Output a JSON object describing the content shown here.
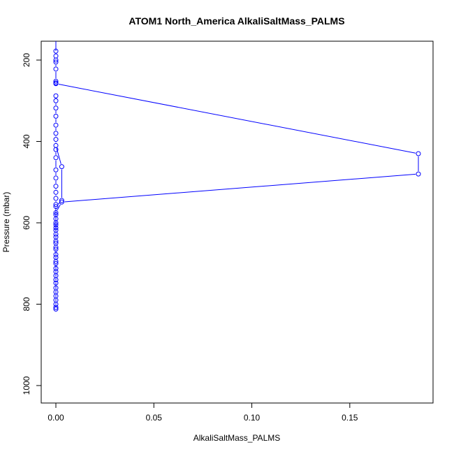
{
  "chart_data": {
    "type": "line",
    "title": "ATOM1 North_America AlkaliSaltMass_PALMS",
    "xlabel": "AlkaliSaltMass_PALMS",
    "ylabel": "Pressure (mbar)",
    "xlim": [
      0,
      0.185
    ],
    "ylim": [
      1040,
      160
    ],
    "y_reversed": true,
    "x_ticks": [
      0.0,
      0.05,
      0.1,
      0.15
    ],
    "x_tick_labels": [
      "0.00",
      "0.05",
      "0.10",
      "0.15"
    ],
    "y_ticks": [
      200,
      400,
      600,
      800,
      1000
    ],
    "y_tick_labels": [
      "200",
      "400",
      "600",
      "800",
      "1000"
    ],
    "grid": false,
    "legend": "none",
    "series": [
      {
        "color": "#0000ff",
        "marker": "open-circle",
        "points": [
          [
            0,
            178
          ],
          [
            0,
            190
          ],
          [
            0,
            200
          ],
          [
            0,
            205
          ],
          [
            0,
            222
          ],
          [
            0,
            252
          ],
          [
            0,
            256
          ],
          [
            0,
            258
          ],
          [
            0.185,
            430
          ],
          [
            0.185,
            480
          ],
          [
            0.003,
            549
          ],
          [
            0,
            575
          ],
          [
            0,
            600
          ],
          [
            0,
            618
          ],
          [
            0,
            635
          ],
          [
            0,
            650
          ],
          [
            0,
            665
          ],
          [
            0,
            685
          ],
          [
            0,
            700
          ],
          [
            0,
            720
          ],
          [
            0,
            740
          ],
          [
            0,
            760
          ],
          [
            0,
            780
          ],
          [
            0,
            800
          ],
          [
            0,
            812
          ]
        ]
      },
      {
        "color": "#0000ff",
        "marker": "open-circle",
        "points": [
          [
            0,
            288
          ],
          [
            0,
            300
          ],
          [
            0,
            318
          ],
          [
            0,
            338
          ],
          [
            0,
            360
          ],
          [
            0,
            380
          ],
          [
            0,
            395
          ],
          [
            0,
            410
          ],
          [
            0.003,
            462
          ],
          [
            0.003,
            545
          ],
          [
            0,
            560
          ],
          [
            0,
            590
          ],
          [
            0,
            612
          ]
        ]
      },
      {
        "color": "#0000ff",
        "marker": "open-circle",
        "points": [
          [
            0,
            420
          ],
          [
            0,
            440
          ],
          [
            0,
            470
          ],
          [
            0,
            490
          ],
          [
            0,
            510
          ],
          [
            0,
            525
          ],
          [
            0,
            540
          ],
          [
            0,
            555
          ],
          [
            0,
            580
          ],
          [
            0,
            605
          ],
          [
            0,
            628
          ],
          [
            0,
            645
          ],
          [
            0,
            660
          ],
          [
            0,
            678
          ],
          [
            0,
            695
          ],
          [
            0,
            712
          ],
          [
            0,
            730
          ],
          [
            0,
            748
          ],
          [
            0,
            770
          ],
          [
            0,
            790
          ],
          [
            0,
            808
          ]
        ]
      }
    ],
    "colors": {
      "series": "#0000ff",
      "axes": "#000000",
      "background": "#ffffff"
    }
  }
}
